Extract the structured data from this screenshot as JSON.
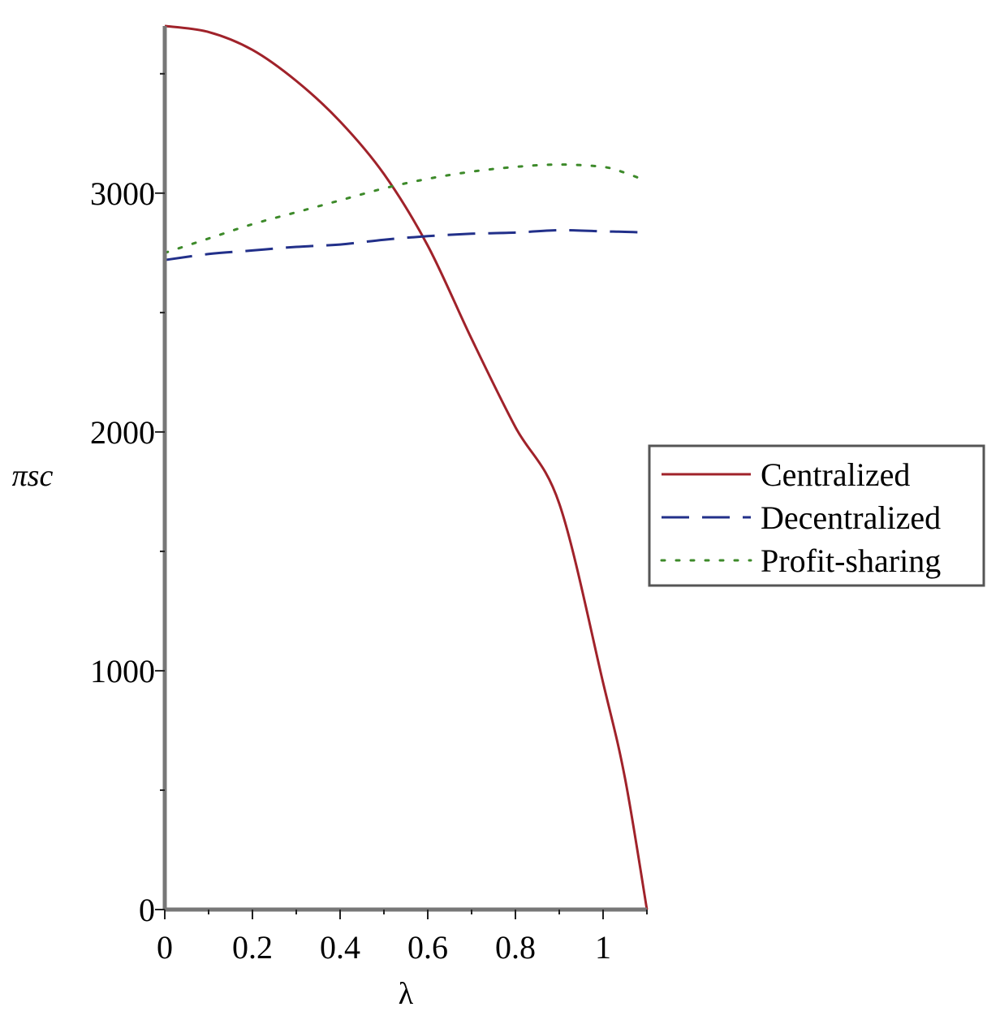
{
  "chart_data": {
    "type": "line",
    "xlabel": "λ",
    "ylabel": "πsc",
    "xlim": [
      0,
      1.1
    ],
    "ylim": [
      0,
      3700
    ],
    "x_ticks": [
      0,
      0.2,
      0.4,
      0.6,
      0.8,
      1
    ],
    "x_tick_labels": [
      "0",
      "0.2",
      "0.4",
      "0.6",
      "0.8",
      "1"
    ],
    "y_ticks": [
      0,
      1000,
      2000,
      3000
    ],
    "y_tick_labels": [
      "0",
      "1000",
      "2000",
      "3000"
    ],
    "legend_position": "right",
    "grid": false,
    "x": [
      0,
      0.1,
      0.2,
      0.3,
      0.4,
      0.5,
      0.6,
      0.7,
      0.8,
      0.9,
      1.0,
      1.05,
      1.1
    ],
    "series": [
      {
        "name": "Centralized",
        "color": "#a0222a",
        "style": "solid",
        "values": [
          3700,
          3675,
          3600,
          3470,
          3300,
          3080,
          2780,
          2390,
          2020,
          1700,
          950,
          550,
          0
        ]
      },
      {
        "name": "Decentralized",
        "color": "#22308a",
        "style": "dashed",
        "values": [
          2720,
          2745,
          2760,
          2775,
          2785,
          2805,
          2820,
          2830,
          2835,
          2845,
          2840,
          2838,
          2835
        ]
      },
      {
        "name": "Profit-sharing",
        "color": "#3d8a2a",
        "style": "dotted",
        "values": [
          2750,
          2810,
          2870,
          2920,
          2970,
          3020,
          3060,
          3090,
          3110,
          3120,
          3110,
          3085,
          3050
        ]
      }
    ]
  }
}
